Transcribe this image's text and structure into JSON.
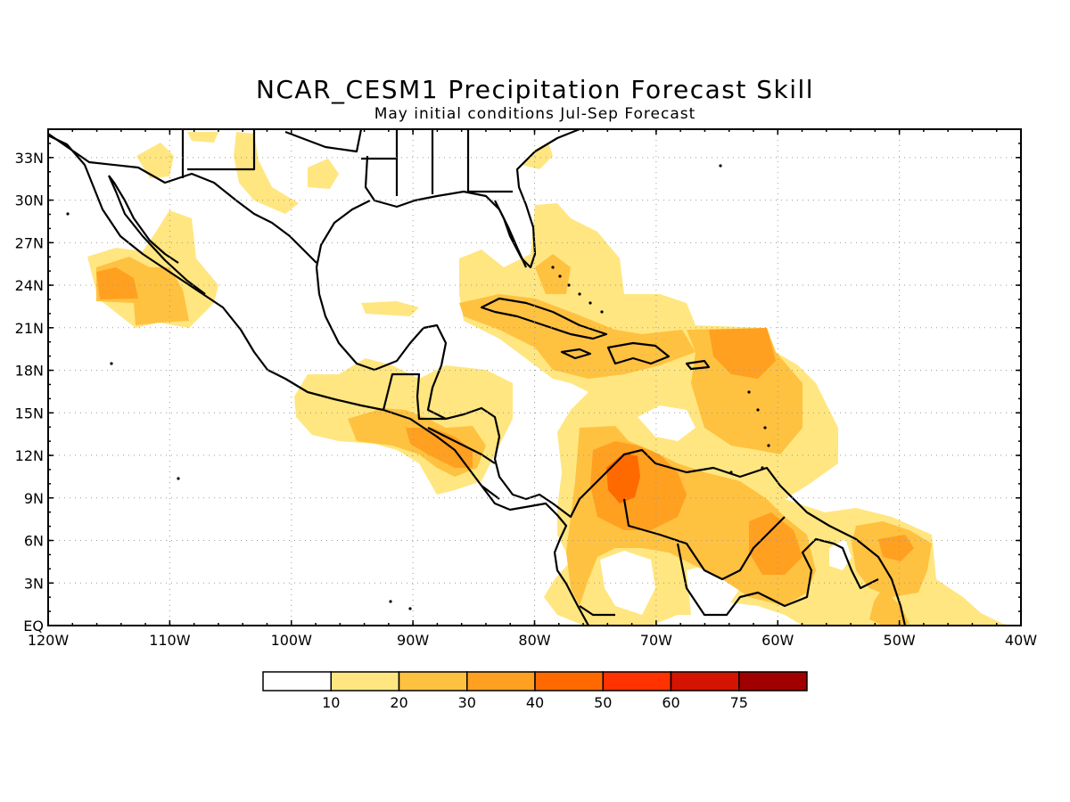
{
  "title": "NCAR_CESM1 Precipitation Forecast Skill",
  "subtitle": "May initial conditions  Jul-Sep Forecast",
  "map": {
    "lon_range": [
      -120,
      -40
    ],
    "lat_range": [
      0,
      35
    ],
    "lon_ticks": [
      "120W",
      "110W",
      "100W",
      "90W",
      "80W",
      "70W",
      "60W",
      "50W",
      "40W"
    ],
    "lat_ticks": [
      "EQ",
      "3N",
      "6N",
      "9N",
      "12N",
      "15N",
      "18N",
      "21N",
      "24N",
      "27N",
      "30N",
      "33N"
    ],
    "gridlines": true
  },
  "colorbar": {
    "labels": [
      "10",
      "20",
      "30",
      "40",
      "50",
      "60",
      "75"
    ],
    "colors": [
      "#ffffff",
      "#ffe680",
      "#ffc140",
      "#ffa020",
      "#ff6a00",
      "#ff3200",
      "#d41400",
      "#a00000"
    ]
  }
}
